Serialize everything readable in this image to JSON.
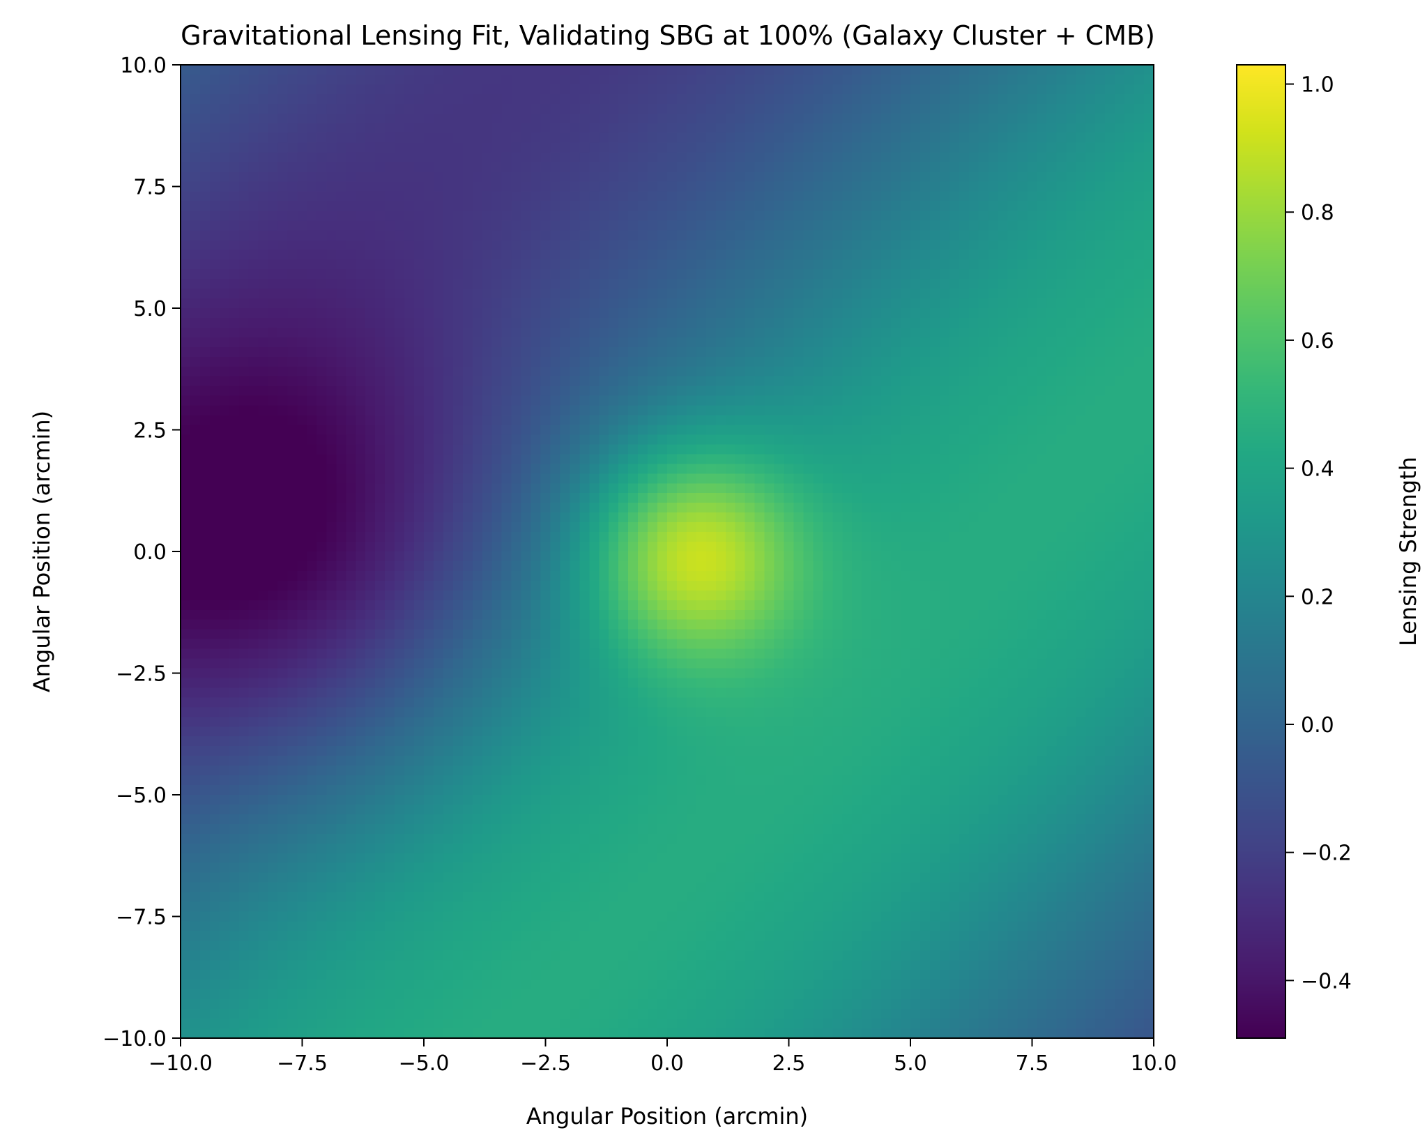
{
  "chart_data": {
    "type": "heatmap",
    "title": "Gravitational Lensing Fit, Validating SBG at 100% (Galaxy Cluster + CMB)",
    "xlabel": "Angular Position (arcmin)",
    "ylabel": "Angular Position (arcmin)",
    "xlim": [
      -10.0,
      10.0
    ],
    "ylim": [
      -10.0,
      10.0
    ],
    "x_ticks": [
      "−10.0",
      "−7.5",
      "−5.0",
      "−2.5",
      "0.0",
      "2.5",
      "5.0",
      "7.5",
      "10.0"
    ],
    "y_ticks": [
      "−10.0",
      "−7.5",
      "−5.0",
      "−2.5",
      "0.0",
      "2.5",
      "5.0",
      "7.5",
      "10.0"
    ],
    "colorbar": {
      "label": "Lensing Strength",
      "colormap": "viridis",
      "vmin": -0.49,
      "vmax": 1.03,
      "ticks": [
        -0.4,
        -0.2,
        0.0,
        0.2,
        0.4,
        0.6,
        0.8,
        1.0
      ],
      "tick_labels": [
        "−0.4",
        "−0.2",
        "0.0",
        "0.2",
        "0.4",
        "0.6",
        "0.8",
        "1.0"
      ]
    },
    "grid": false,
    "resolution": [
      100,
      100
    ],
    "features": {
      "peak": {
        "x": 0.5,
        "y": 0.0,
        "value": 1.03
      },
      "trough": {
        "x": -8.0,
        "y": 0.0,
        "value": -0.49
      },
      "background_range": [
        -0.25,
        0.45
      ]
    }
  }
}
